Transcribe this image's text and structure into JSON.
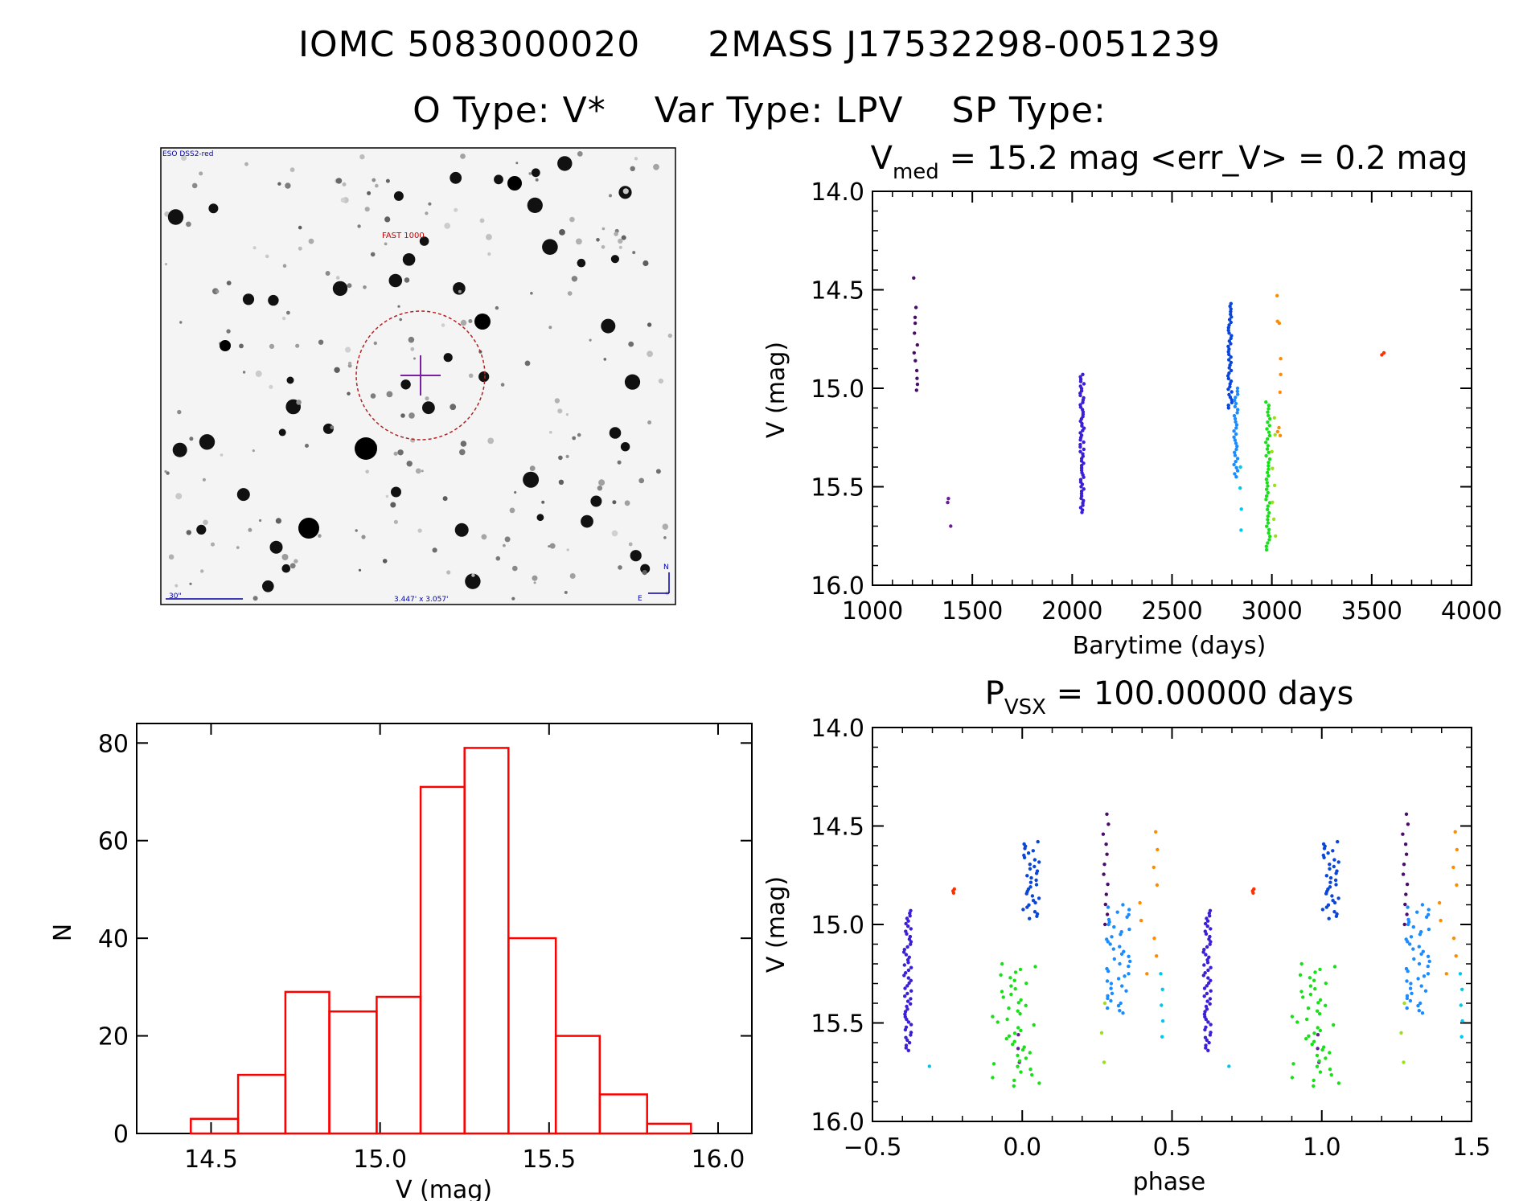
{
  "header": {
    "line1_id": "IOMC 5083000020",
    "line1_name": "2MASS J17532298-0051239",
    "otype_label": "O Type:",
    "otype": "V*",
    "vartype_label": "Var Type:",
    "vartype": "LPV",
    "sptype_label": "SP Type:",
    "sptype": ""
  },
  "finder_chart": {
    "survey_label": "ESO DSS2-red",
    "neighbor_label": "FAST 1000",
    "scale_label": "30\"",
    "fov_label": "3.447' x 3.057'",
    "north_label": "N",
    "east_label": "E"
  },
  "colors": {
    "histogram": "#ff0000",
    "circle": "#b22222",
    "crosshair": "#7b1fa2",
    "epoch_colors": [
      "#4b0b6b",
      "#6a1b9a",
      "#3a1fd6",
      "#0a46d8",
      "#1a8cff",
      "#00c8e8",
      "#18e018",
      "#9be01a",
      "#ff8c00",
      "#ff3000"
    ]
  },
  "chart_data": [
    {
      "type": "scatter",
      "title_main": "V",
      "title_sub": "med",
      "title_rest": " = 15.2 mag <err_V> = 0.2 mag",
      "xlabel": "Barytime (days)",
      "ylabel": "V (mag)",
      "xlim": [
        1000,
        4000
      ],
      "ylim": [
        16.0,
        14.0
      ],
      "xticks": [
        "1000",
        "1500",
        "2000",
        "2500",
        "3000",
        "3500",
        "4000"
      ],
      "yticks": [
        "14.0",
        "14.5",
        "15.0",
        "15.5",
        "16.0"
      ],
      "groups": [
        {
          "name": "g1",
          "color_index": 0,
          "x": 1215,
          "mags": [
            14.44,
            14.59,
            14.64,
            14.67,
            14.72,
            14.78,
            14.82,
            14.86,
            14.91,
            14.95,
            14.98,
            15.01
          ]
        },
        {
          "name": "g2",
          "color_index": 1,
          "x": 1385,
          "mags": [
            15.56,
            15.58,
            15.7
          ]
        },
        {
          "name": "g3",
          "color_index": 2,
          "x": 2050,
          "range": [
            14.93,
            15.63
          ],
          "n": 60
        },
        {
          "name": "g4",
          "color_index": 3,
          "x": 2790,
          "range": [
            14.57,
            15.1
          ],
          "n": 40
        },
        {
          "name": "g5",
          "color_index": 4,
          "x": 2820,
          "range": [
            15.0,
            15.45
          ],
          "n": 30
        },
        {
          "name": "g6",
          "color_index": 5,
          "x": 2840,
          "range": [
            15.4,
            15.72
          ],
          "n": 4
        },
        {
          "name": "g7",
          "color_index": 6,
          "x": 2980,
          "range": [
            15.07,
            15.82
          ],
          "n": 45
        },
        {
          "name": "g8",
          "color_index": 7,
          "x": 3010,
          "range": [
            15.15,
            15.75
          ],
          "n": 8
        },
        {
          "name": "g9",
          "color_index": 8,
          "x": 3035,
          "mags": [
            14.53,
            14.66,
            14.67,
            14.85,
            14.93,
            15.02,
            15.2,
            15.22,
            15.24
          ]
        },
        {
          "name": "g10",
          "color_index": 9,
          "x": 3560,
          "mags": [
            14.82,
            14.83
          ]
        }
      ]
    },
    {
      "type": "bar",
      "title": "",
      "xlabel": "V (mag)",
      "ylabel": "N",
      "xlim": [
        14.28,
        16.1
      ],
      "ylim": [
        0,
        80
      ],
      "xticks": [
        "14.5",
        "15.0",
        "15.5",
        "16.0"
      ],
      "yticks": [
        "0",
        "20",
        "40",
        "60",
        "80"
      ],
      "bins": [
        {
          "lo": 14.44,
          "hi": 14.58,
          "count": 3
        },
        {
          "lo": 14.58,
          "hi": 14.72,
          "count": 12
        },
        {
          "lo": 14.72,
          "hi": 14.85,
          "count": 29
        },
        {
          "lo": 14.85,
          "hi": 14.99,
          "count": 25
        },
        {
          "lo": 14.99,
          "hi": 15.12,
          "count": 28
        },
        {
          "lo": 15.12,
          "hi": 15.25,
          "count": 71
        },
        {
          "lo": 15.25,
          "hi": 15.38,
          "count": 79
        },
        {
          "lo": 15.38,
          "hi": 15.52,
          "count": 40
        },
        {
          "lo": 15.52,
          "hi": 15.65,
          "count": 20
        },
        {
          "lo": 15.65,
          "hi": 15.79,
          "count": 8
        },
        {
          "lo": 15.79,
          "hi": 15.92,
          "count": 2
        }
      ]
    },
    {
      "type": "scatter",
      "title_main": "P",
      "title_sub": "VSX",
      "title_rest": " = 100.00000 days",
      "period_days": 100.0,
      "xlabel": "phase",
      "ylabel": "V (mag)",
      "xlim": [
        -0.5,
        1.5
      ],
      "ylim": [
        16.0,
        14.0
      ],
      "xticks": [
        "−0.5",
        "0.0",
        "0.5",
        "1.0",
        "1.5"
      ],
      "yticks": [
        "14.0",
        "14.5",
        "15.0",
        "15.5",
        "16.0"
      ],
      "clusters": [
        {
          "color_index": 2,
          "phase": [
            -0.395,
            -0.37
          ],
          "range": [
            14.93,
            15.64
          ],
          "n": 55
        },
        {
          "color_index": 0,
          "phase": [
            0.27,
            0.29
          ],
          "range": [
            14.44,
            15.0
          ],
          "n": 12
        },
        {
          "color_index": 1,
          "phase": [
            -0.02,
            0.0
          ],
          "range": [
            15.56,
            15.7
          ],
          "n": 3
        },
        {
          "color_index": 3,
          "phase": [
            0.0,
            0.06
          ],
          "range": [
            14.58,
            14.97
          ],
          "n": 35
        },
        {
          "color_index": 4,
          "phase": [
            0.28,
            0.36
          ],
          "range": [
            14.9,
            15.45
          ],
          "n": 45
        },
        {
          "color_index": 5,
          "phase": [
            0.46,
            0.47
          ],
          "range": [
            15.25,
            15.57
          ],
          "n": 5
        },
        {
          "color_index": 5,
          "phase": [
            -0.31,
            -0.31
          ],
          "range": [
            15.72,
            15.72
          ],
          "n": 1
        },
        {
          "color_index": 6,
          "phase": [
            -0.1,
            0.06
          ],
          "range": [
            15.2,
            15.82
          ],
          "n": 45
        },
        {
          "color_index": 7,
          "phase": [
            0.26,
            0.28
          ],
          "range": [
            15.4,
            15.7
          ],
          "n": 3
        },
        {
          "color_index": 8,
          "phase": [
            0.38,
            0.46
          ],
          "range": [
            14.53,
            15.25
          ],
          "n": 9
        },
        {
          "color_index": 9,
          "phase": [
            -0.24,
            -0.22
          ],
          "range": [
            14.82,
            14.84
          ],
          "n": 3
        }
      ]
    }
  ]
}
